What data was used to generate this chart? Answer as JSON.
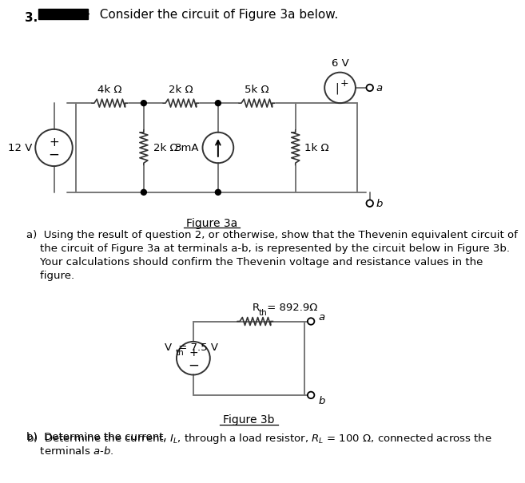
{
  "background_color": "#ffffff",
  "resistor_4k": "4k Ω",
  "resistor_2k_series": "2k Ω",
  "resistor_5k": "5k Ω",
  "resistor_2k_shunt": "2k Ω",
  "resistor_1k": "1k Ω",
  "voltage_source_val": "12 V",
  "current_source_val": "3mA",
  "voltage_6v": "6 V",
  "thevenin_R_label": "R",
  "thevenin_R_sub": "th",
  "thevenin_R_val": " = 892.9Ω",
  "thevenin_V_label": "V",
  "thevenin_V_sub": "th",
  "thevenin_V_val": " = 7.5 V",
  "terminal_a": "a",
  "terminal_b": "b",
  "fig3a_label": "Figure 3a",
  "fig3b_label": "Figure 3b",
  "header_num": "3.",
  "header_text": "  Consider the circuit of Figure 3a below.",
  "parta_line1": "a)  Using the result of question 2, or otherwise, show that the Thevenin equivalent circuit of",
  "parta_line2": "    the circuit of Figure 3a at terminals a-b, is represented by the circuit below in Figure 3b.",
  "parta_line3": "    Your calculations should confirm the Thevenin voltage and resistance values in the",
  "parta_line4": "    figure.",
  "partb_line1": "b)  Determine the current, ",
  "partb_IL": "I",
  "partb_IL_sub": "L",
  "partb_line1b": ", through a load resistor, R",
  "partb_RL_sub": "L",
  "partb_line1c": " = 100 Ω, connected across the",
  "partb_line2": "    terminals a-b."
}
